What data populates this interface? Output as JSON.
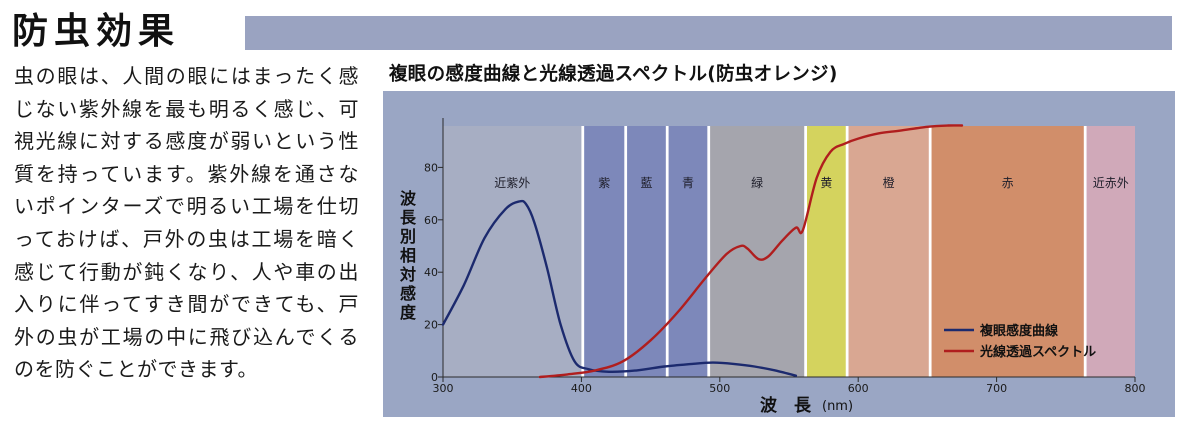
{
  "heading": {
    "title": "防虫効果"
  },
  "body_text": "虫の眼は、人間の眼にはまったく感じない紫外線を最も明るく感じ、可視光線に対する感度が弱いという性質を持っています。紫外線を通さないポインターズで明るい工場を仕切っておけば、戸外の虫は工場を暗く感じて行動が鈍くなり、人や車の出入りに伴ってすき間ができても、戸外の虫が工場の中に飛び込んでくるのを防ぐことができます。",
  "colors": {
    "title_bar": "#9aa3c1",
    "chart_panel": "#9aa6c4",
    "compound_eye_curve": "#1c2a6e",
    "transmission_curve": "#b01e1e"
  },
  "chart_data": {
    "type": "line",
    "title": "複眼の感度曲線と光線透過スペクトル(防虫オレンジ)",
    "xlabel": "波　長",
    "xunit": "(nm)",
    "ylabel": "波長別相対感度",
    "xlim": [
      300,
      800
    ],
    "ylim": [
      0,
      100
    ],
    "xticks": [
      300,
      400,
      500,
      600,
      700,
      800
    ],
    "yticks": [
      0,
      20,
      40,
      60,
      80
    ],
    "grid": false,
    "legend_position": "bottom-right",
    "bands": [
      {
        "label": "近紫外",
        "from": 300,
        "to": 400,
        "color": "#a7aec3"
      },
      {
        "label": "紫",
        "from": 402,
        "to": 431,
        "color": "#7d88ba"
      },
      {
        "label": "藍",
        "from": 433,
        "to": 461,
        "color": "#7d88ba"
      },
      {
        "label": "青",
        "from": 463,
        "to": 491,
        "color": "#7d88ba"
      },
      {
        "label": "緑",
        "from": 493,
        "to": 561,
        "color": "#a5a5ad"
      },
      {
        "label": "黄",
        "from": 563,
        "to": 591,
        "color": "#d4d35e"
      },
      {
        "label": "橙",
        "from": 593,
        "to": 651,
        "color": "#d9a792"
      },
      {
        "label": "赤",
        "from": 653,
        "to": 763,
        "color": "#d18e6a"
      },
      {
        "label": "近赤外",
        "from": 765,
        "to": 800,
        "color": "#d0a9b9"
      }
    ],
    "series": [
      {
        "name": "複眼感度曲線",
        "color": "#1c2a6e",
        "x": [
          300,
          315,
          330,
          345,
          355,
          360,
          366,
          375,
          385,
          395,
          405,
          420,
          440,
          460,
          480,
          495,
          510,
          525,
          540,
          555
        ],
        "y": [
          20,
          35,
          53,
          64,
          67,
          66,
          59,
          42,
          20,
          6,
          3,
          2,
          2.5,
          4,
          5,
          5.5,
          5,
          4,
          2.5,
          0.5
        ]
      },
      {
        "name": "光線透過スペクトル",
        "color": "#b01e1e",
        "x": [
          370,
          390,
          410,
          430,
          450,
          470,
          490,
          505,
          515,
          520,
          528,
          535,
          545,
          555,
          560,
          570,
          580,
          590,
          600,
          615,
          630,
          650,
          665,
          675
        ],
        "y": [
          0,
          1,
          2.5,
          6,
          14,
          25,
          38,
          47,
          50,
          49,
          45,
          46,
          52,
          57,
          56,
          76,
          86,
          89,
          91,
          93,
          94,
          95.5,
          96,
          96
        ]
      }
    ]
  }
}
